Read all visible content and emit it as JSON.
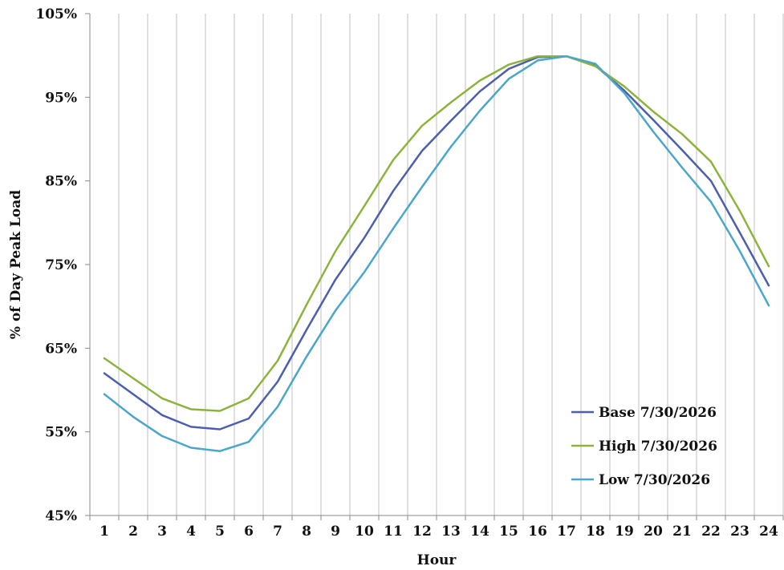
{
  "chart_data": {
    "type": "line",
    "xlabel": "Hour",
    "ylabel": "% of Day Peak Load",
    "x": [
      1,
      2,
      3,
      4,
      5,
      6,
      7,
      8,
      9,
      10,
      11,
      12,
      13,
      14,
      15,
      16,
      17,
      18,
      19,
      20,
      21,
      22,
      23,
      24
    ],
    "x_tick_labels": [
      "1",
      "2",
      "3",
      "4",
      "5",
      "6",
      "7",
      "8",
      "9",
      "10",
      "11",
      "12",
      "13",
      "14",
      "15",
      "16",
      "17",
      "18",
      "19",
      "20",
      "21",
      "22",
      "23",
      "24"
    ],
    "ylim": [
      45,
      105
    ],
    "y_ticks": [
      45,
      55,
      65,
      75,
      85,
      95,
      105
    ],
    "y_tick_labels": [
      "45%",
      "55%",
      "65%",
      "75%",
      "85%",
      "95%",
      "105%"
    ],
    "grid": "vertical",
    "legend_position": "bottom-right",
    "series": [
      {
        "name": "Base 7/30/2026",
        "color": "#4a5fae",
        "values": [
          62.0,
          59.5,
          57.0,
          55.6,
          55.3,
          56.6,
          61.0,
          67.2,
          73.2,
          78.2,
          83.8,
          88.6,
          92.2,
          95.7,
          98.4,
          99.8,
          99.9,
          98.8,
          95.8,
          92.3,
          88.7,
          85.0,
          78.8,
          72.5
        ]
      },
      {
        "name": "High 7/30/2026",
        "color": "#8cb43c",
        "values": [
          63.8,
          61.4,
          59.0,
          57.7,
          57.5,
          59.0,
          63.5,
          70.2,
          76.6,
          82.0,
          87.5,
          91.6,
          94.4,
          97.0,
          98.9,
          99.9,
          99.9,
          98.7,
          96.3,
          93.3,
          90.6,
          87.3,
          81.4,
          74.8
        ]
      },
      {
        "name": "Low 7/30/2026",
        "color": "#4aa6cc",
        "values": [
          59.5,
          56.8,
          54.5,
          53.1,
          52.7,
          53.8,
          58.0,
          64.0,
          69.5,
          74.1,
          79.3,
          84.3,
          89.1,
          93.4,
          97.2,
          99.4,
          99.9,
          99.0,
          95.5,
          90.9,
          86.6,
          82.5,
          76.6,
          70.1
        ]
      }
    ]
  }
}
